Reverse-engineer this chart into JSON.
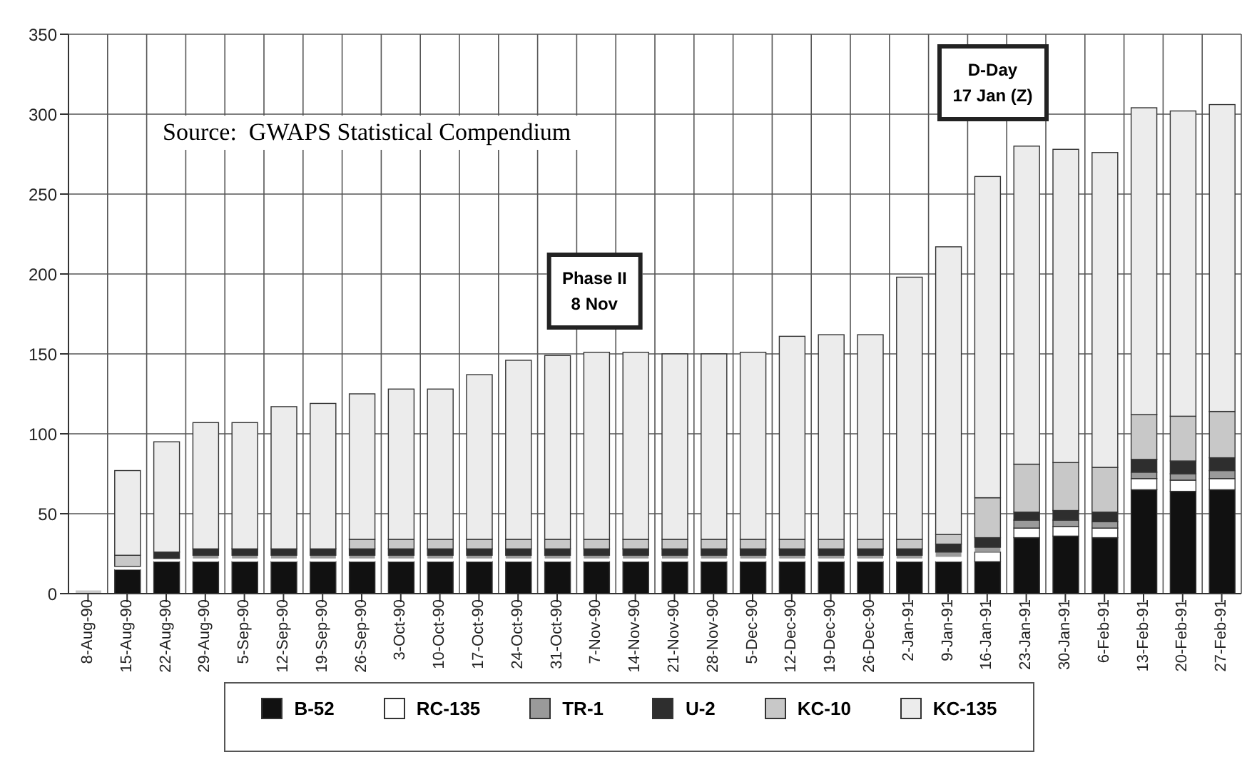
{
  "chart_data": {
    "type": "bar",
    "stacked": true,
    "categories": [
      "8-Aug-90",
      "15-Aug-90",
      "22-Aug-90",
      "29-Aug-90",
      "5-Sep-90",
      "12-Sep-90",
      "19-Sep-90",
      "26-Sep-90",
      "3-Oct-90",
      "10-Oct-90",
      "17-Oct-90",
      "24-Oct-90",
      "31-Oct-90",
      "7-Nov-90",
      "14-Nov-90",
      "21-Nov-90",
      "28-Nov-90",
      "5-Dec-90",
      "12-Dec-90",
      "19-Dec-90",
      "26-Dec-90",
      "2-Jan-91",
      "9-Jan-91",
      "16-Jan-91",
      "23-Jan-91",
      "30-Jan-91",
      "6-Feb-91",
      "13-Feb-91",
      "20-Feb-91",
      "27-Feb-91"
    ],
    "series": [
      {
        "name": "B-52",
        "color": "#111111",
        "values": [
          0,
          15,
          20,
          20,
          20,
          20,
          20,
          20,
          20,
          20,
          20,
          20,
          20,
          20,
          20,
          20,
          20,
          20,
          20,
          20,
          20,
          20,
          20,
          20,
          35,
          36,
          35,
          65,
          64,
          65
        ]
      },
      {
        "name": "RC-135",
        "color": "#ffffff",
        "values": [
          0,
          2,
          2,
          2,
          2,
          2,
          2,
          2,
          2,
          2,
          2,
          2,
          2,
          2,
          2,
          2,
          2,
          2,
          2,
          2,
          2,
          2,
          3,
          6,
          6,
          6,
          6,
          7,
          7,
          7
        ]
      },
      {
        "name": "TR-1",
        "color": "#9a9a9a",
        "values": [
          0,
          0,
          0,
          2,
          2,
          2,
          2,
          2,
          2,
          2,
          2,
          2,
          2,
          2,
          2,
          2,
          2,
          2,
          2,
          2,
          2,
          2,
          3,
          3,
          5,
          4,
          4,
          4,
          4,
          5
        ]
      },
      {
        "name": "U-2",
        "color": "#2e2e2e",
        "values": [
          0,
          0,
          4,
          4,
          4,
          4,
          4,
          4,
          4,
          4,
          4,
          4,
          4,
          4,
          4,
          4,
          4,
          4,
          4,
          4,
          4,
          4,
          5,
          6,
          5,
          6,
          6,
          8,
          8,
          8
        ]
      },
      {
        "name": "KC-10",
        "color": "#c8c8c8",
        "values": [
          2,
          7,
          0,
          0,
          0,
          0,
          0,
          6,
          6,
          6,
          6,
          6,
          6,
          6,
          6,
          6,
          6,
          6,
          6,
          6,
          6,
          6,
          6,
          25,
          30,
          30,
          28,
          28,
          28,
          29
        ]
      },
      {
        "name": "KC-135",
        "color": "#ececec",
        "values": [
          0,
          53,
          69,
          79,
          79,
          89,
          91,
          91,
          94,
          94,
          103,
          112,
          115,
          117,
          117,
          116,
          116,
          117,
          127,
          128,
          128,
          164,
          180,
          201,
          199,
          196,
          197,
          192,
          191,
          192
        ]
      }
    ],
    "ylim": [
      0,
      350
    ],
    "yticks": [
      0,
      50,
      100,
      150,
      200,
      250,
      300,
      350
    ],
    "grid": true,
    "legend": "bottom",
    "annotations": [
      "Source:  GWAPS Statistical Compendium",
      "Phase II\n8 Nov",
      "D-Day\n17 Jan (Z)"
    ]
  }
}
